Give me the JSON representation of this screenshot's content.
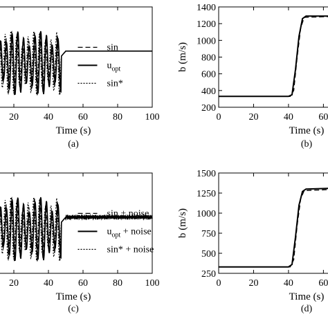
{
  "chart_data": [
    {
      "panel": "(a)",
      "type": "line",
      "xlabel": "Time (s)",
      "ylabel": "",
      "xlim": [
        10,
        100
      ],
      "x_ticks": [
        "20",
        "40",
        "60",
        "80",
        "100"
      ],
      "x_tick_values": [
        20,
        40,
        60,
        80,
        100
      ],
      "legend": [
        {
          "label": "sin",
          "sub": "",
          "style": "dashed"
        },
        {
          "label": "u",
          "sub": "opt",
          "style": "solid"
        },
        {
          "label": "sin*",
          "sub": "",
          "style": "dotted"
        }
      ],
      "noise": false
    },
    {
      "panel": "(b)",
      "type": "line",
      "xlabel": "Time (s)",
      "ylabel": "b (m/s)",
      "xlim": [
        0,
        65
      ],
      "ylim": [
        200,
        1400
      ],
      "x_ticks": [
        "0",
        "20",
        "40",
        "60"
      ],
      "x_tick_values": [
        0,
        20,
        40,
        60
      ],
      "y_ticks": [
        "200",
        "400",
        "600",
        "800",
        "1000",
        "1200",
        "1400"
      ],
      "y_tick_values": [
        200,
        400,
        600,
        800,
        1000,
        1200,
        1400
      ],
      "series": [
        {
          "style": "solid",
          "x": [
            0,
            40,
            42,
            44,
            46,
            48,
            50,
            65
          ],
          "y": [
            330,
            330,
            350,
            650,
            1050,
            1260,
            1290,
            1290
          ]
        },
        {
          "style": "dashed",
          "x": [
            0,
            41,
            43,
            45,
            47,
            49,
            65
          ],
          "y": [
            330,
            330,
            400,
            800,
            1150,
            1275,
            1285
          ]
        }
      ]
    },
    {
      "panel": "(c)",
      "type": "line",
      "xlabel": "Time (s)",
      "ylabel": "",
      "xlim": [
        10,
        100
      ],
      "x_ticks": [
        "20",
        "40",
        "60",
        "80",
        "100"
      ],
      "x_tick_values": [
        20,
        40,
        60,
        80,
        100
      ],
      "legend": [
        {
          "label": "sin + noise",
          "sub": "",
          "style": "dashed"
        },
        {
          "label": "u",
          "sub": "opt",
          "suffix": " + noise",
          "style": "solid"
        },
        {
          "label": "sin* + noise",
          "sub": "",
          "style": "dotted"
        }
      ],
      "noise": true
    },
    {
      "panel": "(d)",
      "type": "line",
      "xlabel": "Time (s)",
      "ylabel": "b (m/s)",
      "xlim": [
        0,
        65
      ],
      "ylim": [
        250,
        1500
      ],
      "x_ticks": [
        "0",
        "20",
        "40",
        "60"
      ],
      "x_tick_values": [
        0,
        20,
        40,
        60
      ],
      "y_ticks": [
        "250",
        "500",
        "750",
        "1000",
        "1250",
        "1500"
      ],
      "y_tick_values": [
        250,
        500,
        750,
        1000,
        1250,
        1500
      ],
      "series": [
        {
          "style": "solid",
          "x": [
            0,
            40,
            42,
            44,
            46,
            48,
            50,
            65
          ],
          "y": [
            330,
            330,
            360,
            700,
            1100,
            1270,
            1300,
            1310
          ]
        },
        {
          "style": "dashed",
          "x": [
            0,
            41,
            43,
            45,
            47,
            49,
            65
          ],
          "y": [
            330,
            330,
            420,
            850,
            1180,
            1280,
            1295
          ]
        }
      ]
    }
  ]
}
